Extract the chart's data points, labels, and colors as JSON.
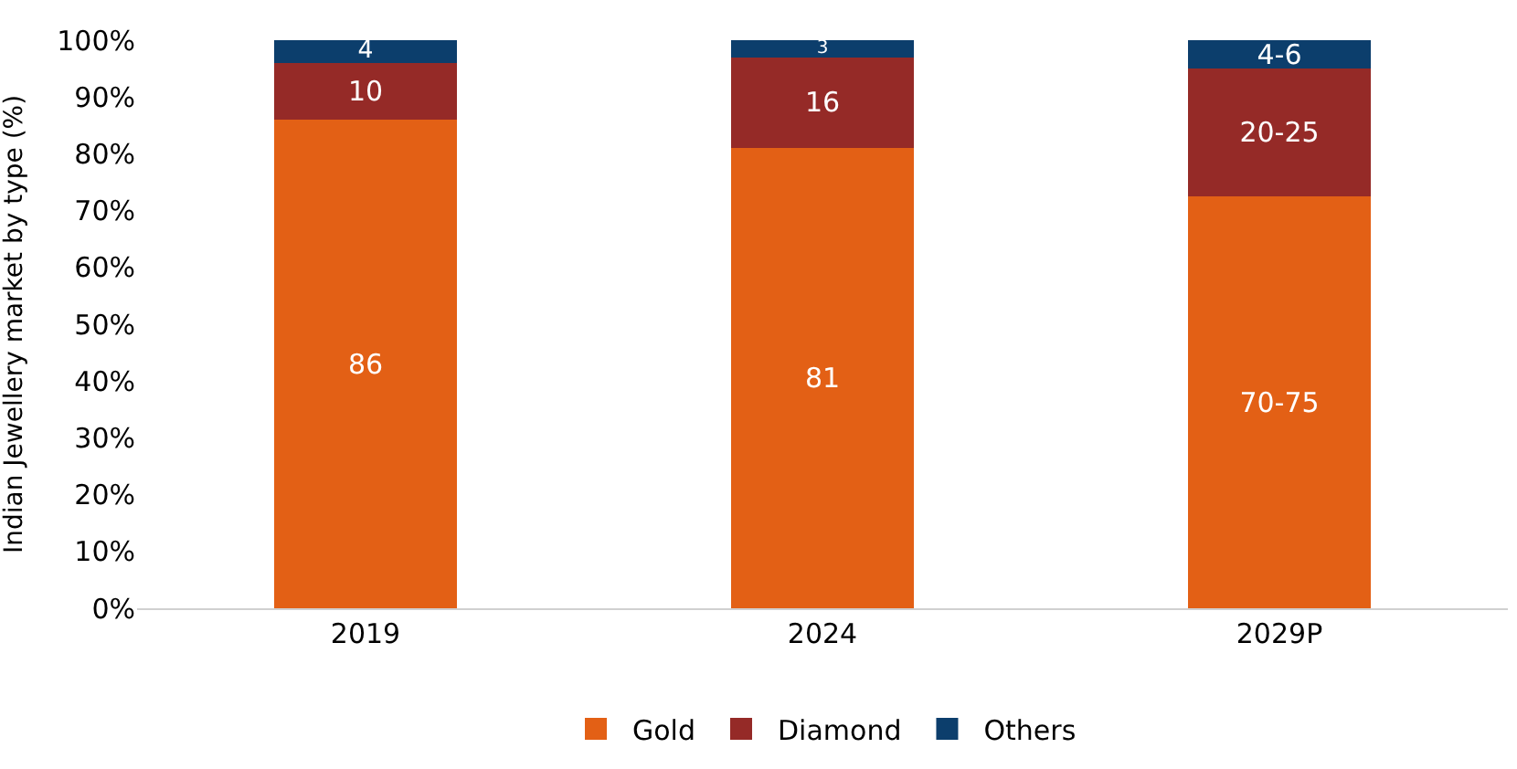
{
  "chart_data": {
    "type": "bar",
    "stacked": true,
    "ylabel": "Indian Jewellery market by type (%)",
    "categories": [
      "2019",
      "2024",
      "2029P"
    ],
    "series": [
      {
        "name": "Gold",
        "color": "#e36015",
        "values": [
          86,
          81,
          72.5
        ],
        "value_labels": [
          "86",
          "81",
          "70-75"
        ]
      },
      {
        "name": "Diamond",
        "color": "#952a27",
        "values": [
          10,
          16,
          22.5
        ],
        "value_labels": [
          "10",
          "16",
          "20-25"
        ]
      },
      {
        "name": "Others",
        "color": "#0c3e6c",
        "values": [
          4,
          3,
          5
        ],
        "value_labels": [
          "4",
          "3",
          "4-6"
        ]
      }
    ],
    "ylim": [
      0,
      100
    ],
    "yticks": [
      {
        "value": 0,
        "label": "0%"
      },
      {
        "value": 10,
        "label": "10%"
      },
      {
        "value": 20,
        "label": "20%"
      },
      {
        "value": 30,
        "label": "30%"
      },
      {
        "value": 40,
        "label": "40%"
      },
      {
        "value": 50,
        "label": "50%"
      },
      {
        "value": 60,
        "label": "60%"
      },
      {
        "value": 70,
        "label": "70%"
      },
      {
        "value": 80,
        "label": "80%"
      },
      {
        "value": 90,
        "label": "90%"
      },
      {
        "value": 100,
        "label": "100%"
      }
    ],
    "legend": "bottom"
  }
}
